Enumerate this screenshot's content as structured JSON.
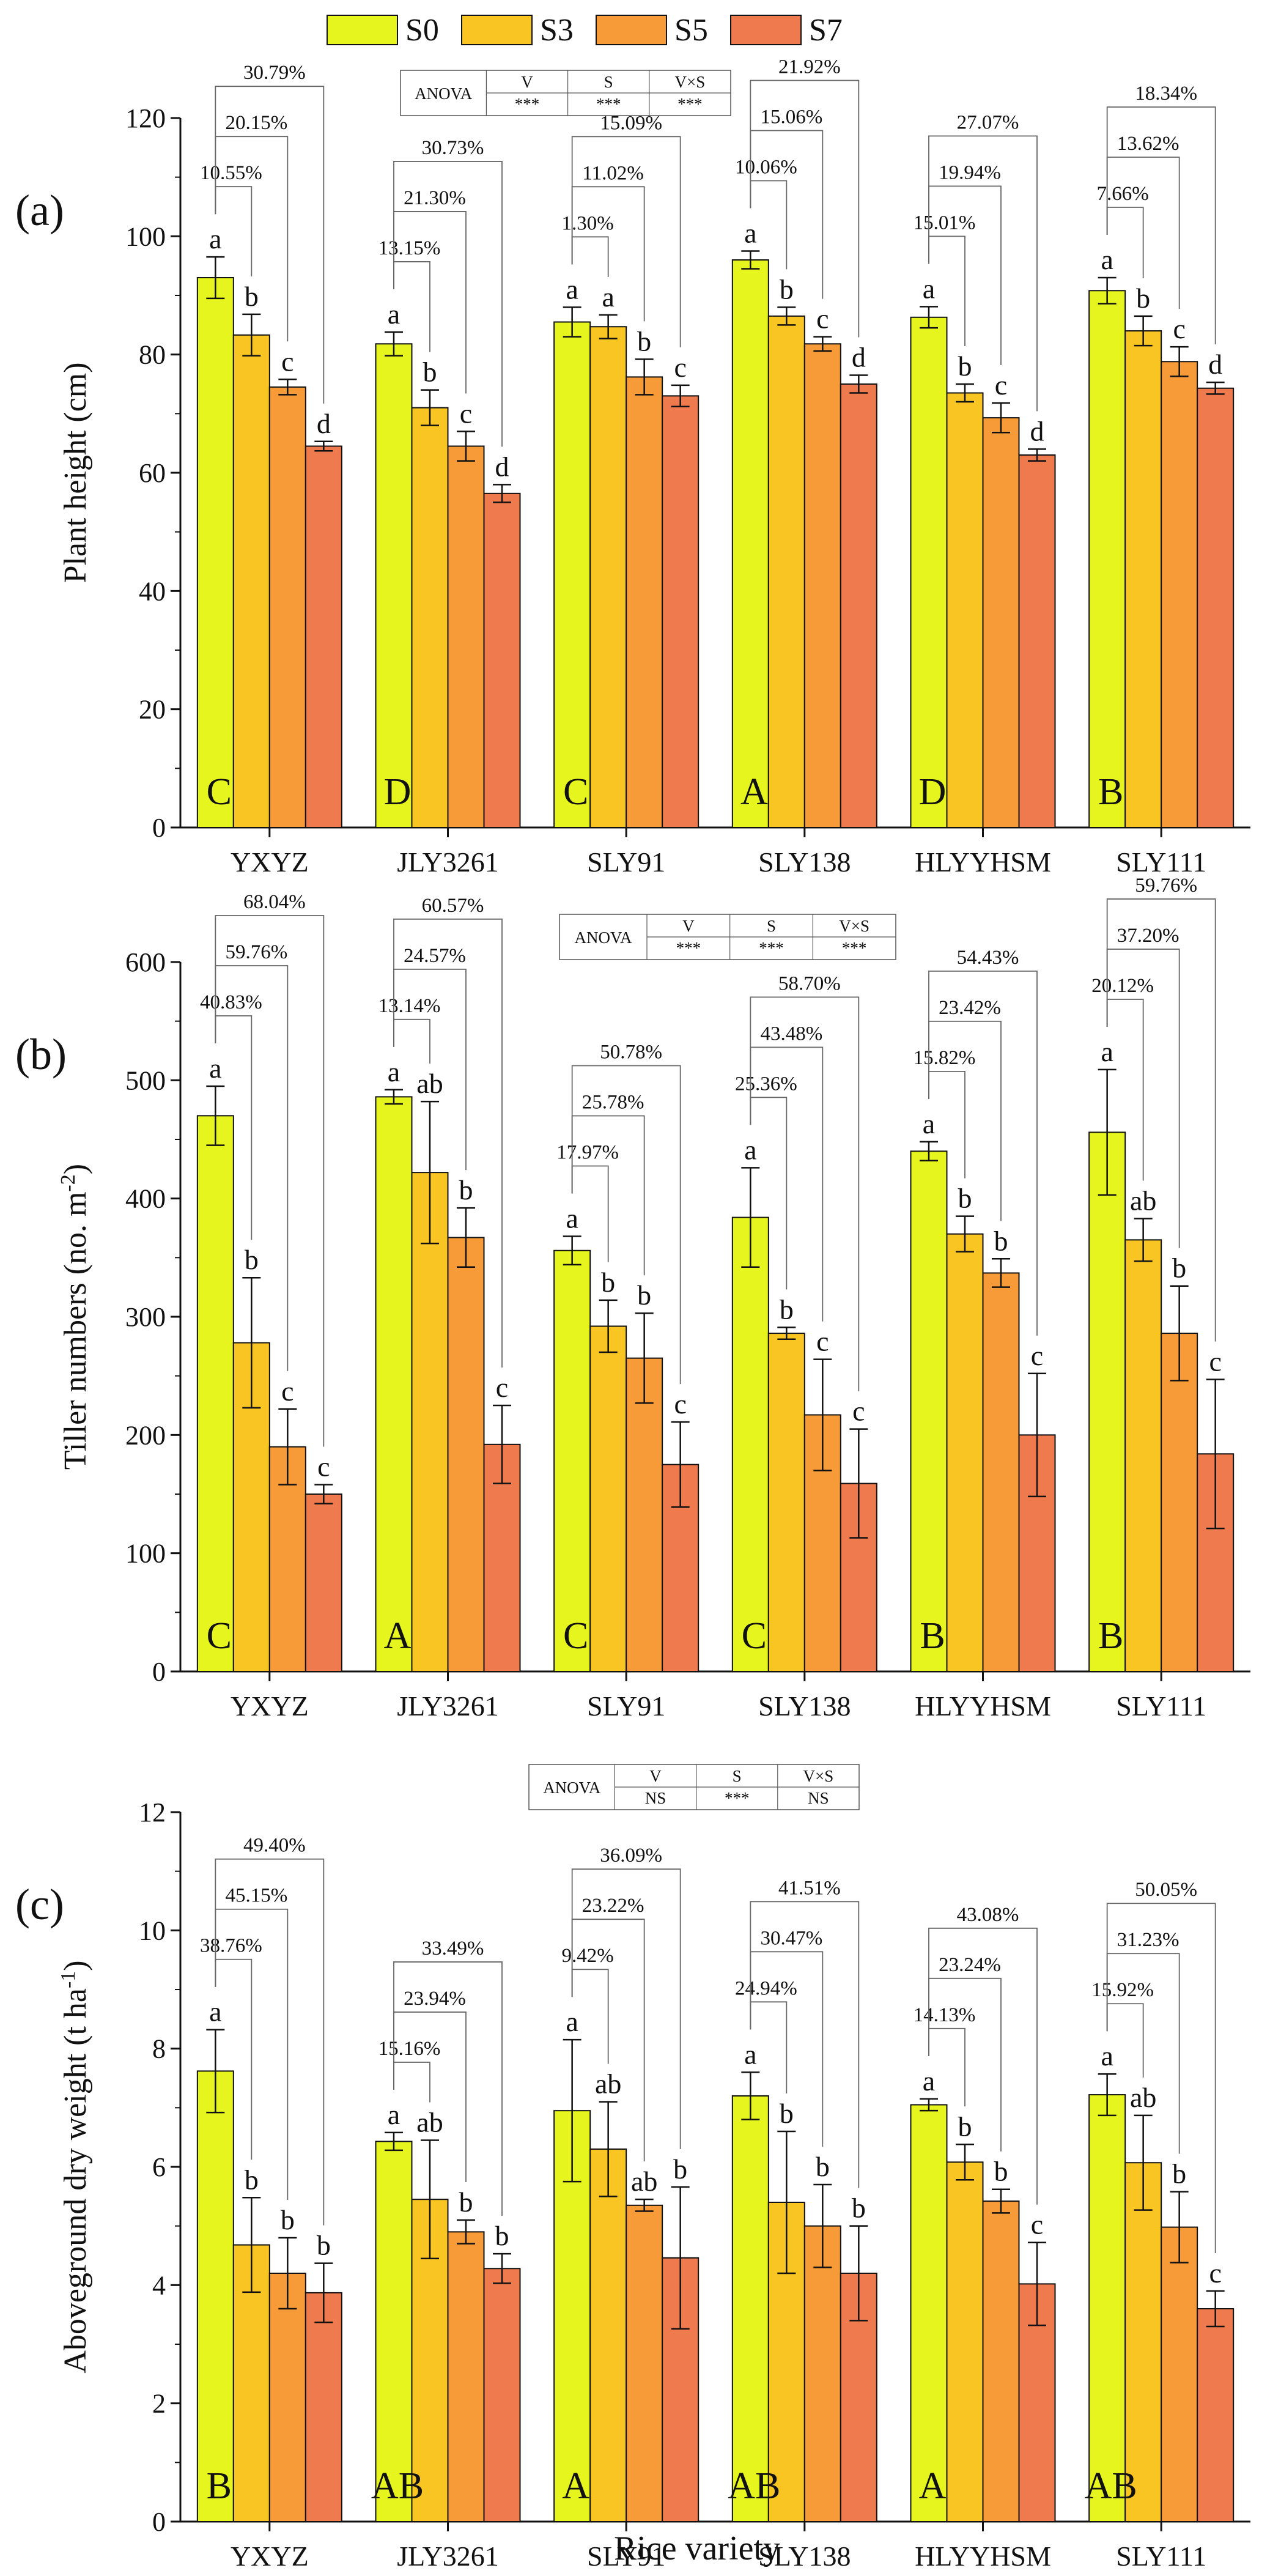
{
  "colors": {
    "S0": "#E6F51E",
    "S3": "#F9C523",
    "S5": "#F79A38",
    "S7": "#EE7A4E",
    "axis": "#111111"
  },
  "legend": [
    "S0",
    "S3",
    "S5",
    "S7"
  ],
  "xlabel": "Rice variety",
  "chart_data": [
    {
      "type": "bar",
      "panel": "(a)",
      "ylabel_main": "Plant height (cm)",
      "ylabel_sup": "",
      "ylabel_tail": "",
      "ylim": [
        0,
        120
      ],
      "ytick_step": 20,
      "yticks": [
        "0",
        "20",
        "40",
        "60",
        "80",
        "100",
        "120"
      ],
      "categories": [
        "YXYZ",
        "JLY3261",
        "SLY91",
        "SLY138",
        "HLYYHSM",
        "SLY111"
      ],
      "series": [
        {
          "name": "S0",
          "values": [
            93,
            81.8,
            85.5,
            96,
            86.3,
            90.8
          ],
          "errors": [
            3.5,
            2,
            2.5,
            1.5,
            1.8,
            2.2
          ]
        },
        {
          "name": "S3",
          "values": [
            83.3,
            71,
            84.7,
            86.5,
            73.5,
            84
          ],
          "errors": [
            3.5,
            3,
            2,
            1.5,
            1.5,
            2.5
          ]
        },
        {
          "name": "S5",
          "values": [
            74.5,
            64.5,
            76.2,
            81.8,
            69.3,
            78.8
          ],
          "errors": [
            1.3,
            2.5,
            3,
            1.2,
            2.5,
            2.5
          ]
        },
        {
          "name": "S7",
          "values": [
            64.5,
            56.5,
            73,
            75,
            63,
            74.3
          ],
          "errors": [
            0.8,
            1.5,
            1.8,
            1.5,
            1,
            1
          ]
        }
      ],
      "letters": [
        [
          "a",
          "b",
          "c",
          "d"
        ],
        [
          "a",
          "b",
          "c",
          "d"
        ],
        [
          "a",
          "a",
          "b",
          "c"
        ],
        [
          "a",
          "b",
          "c",
          "d"
        ],
        [
          "a",
          "b",
          "c",
          "d"
        ],
        [
          "a",
          "b",
          "c",
          "d"
        ]
      ],
      "group_letters": [
        "C",
        "D",
        "C",
        "A",
        "D",
        "B"
      ],
      "pct": [
        [
          "10.55%",
          "20.15%",
          "30.79%"
        ],
        [
          "13.15%",
          "21.30%",
          "30.73%"
        ],
        [
          "1.30%",
          "11.02%",
          "15.09%"
        ],
        [
          "10.06%",
          "15.06%",
          "21.92%"
        ],
        [
          "15.01%",
          "19.94%",
          "27.07%"
        ],
        [
          "7.66%",
          "13.62%",
          "18.34%"
        ]
      ],
      "anova": {
        "label": "ANOVA",
        "headers": [
          "V",
          "S",
          "V×S"
        ],
        "values": [
          "***",
          "***",
          "***"
        ]
      }
    },
    {
      "type": "bar",
      "panel": "(b)",
      "ylabel_main": "Tiller numbers (no. m",
      "ylabel_sup": "-2",
      "ylabel_tail": ")",
      "ylim": [
        0,
        600
      ],
      "ytick_step": 100,
      "yticks": [
        "0",
        "100",
        "200",
        "300",
        "400",
        "500",
        "600"
      ],
      "categories": [
        "YXYZ",
        "JLY3261",
        "SLY91",
        "SLY138",
        "HLYYHSM",
        "SLY111"
      ],
      "series": [
        {
          "name": "S0",
          "values": [
            470,
            486,
            356,
            384,
            440,
            456
          ],
          "errors": [
            25,
            6,
            12,
            42,
            8,
            53
          ]
        },
        {
          "name": "S3",
          "values": [
            278,
            422,
            292,
            286,
            370,
            365
          ],
          "errors": [
            55,
            60,
            22,
            5,
            15,
            18
          ]
        },
        {
          "name": "S5",
          "values": [
            190,
            367,
            265,
            217,
            337,
            286
          ],
          "errors": [
            32,
            25,
            38,
            47,
            12,
            40
          ]
        },
        {
          "name": "S7",
          "values": [
            150,
            192,
            175,
            159,
            200,
            184
          ],
          "errors": [
            8,
            33,
            36,
            46,
            52,
            63
          ]
        }
      ],
      "letters": [
        [
          "a",
          "b",
          "c",
          "c"
        ],
        [
          "a",
          "ab",
          "b",
          "c"
        ],
        [
          "a",
          "b",
          "b",
          "c"
        ],
        [
          "a",
          "b",
          "c",
          "c"
        ],
        [
          "a",
          "b",
          "b",
          "c"
        ],
        [
          "a",
          "ab",
          "b",
          "c"
        ]
      ],
      "group_letters": [
        "C",
        "A",
        "C",
        "C",
        "B",
        "B"
      ],
      "pct": [
        [
          "40.83%",
          "59.76%",
          "68.04%"
        ],
        [
          "13.14%",
          "24.57%",
          "60.57%"
        ],
        [
          "17.97%",
          "25.78%",
          "50.78%"
        ],
        [
          "25.36%",
          "43.48%",
          "58.70%"
        ],
        [
          "15.82%",
          "23.42%",
          "54.43%"
        ],
        [
          "20.12%",
          "37.20%",
          "59.76%"
        ]
      ],
      "anova": {
        "label": "ANOVA",
        "headers": [
          "V",
          "S",
          "V×S"
        ],
        "values": [
          "***",
          "***",
          "***"
        ]
      }
    },
    {
      "type": "bar",
      "panel": "(c)",
      "ylabel_main": "Aboveground dry weight (t ha",
      "ylabel_sup": "-1",
      "ylabel_tail": ")",
      "ylim": [
        0,
        12
      ],
      "ytick_step": 2,
      "yticks": [
        "0",
        "2",
        "4",
        "6",
        "8",
        "10",
        "12"
      ],
      "categories": [
        "YXYZ",
        "JLY3261",
        "SLY91",
        "SLY138",
        "HLYYHSM",
        "SLY111"
      ],
      "series": [
        {
          "name": "S0",
          "values": [
            7.62,
            6.43,
            6.95,
            7.2,
            7.05,
            7.22
          ],
          "errors": [
            0.7,
            0.15,
            1.2,
            0.4,
            0.1,
            0.35
          ]
        },
        {
          "name": "S3",
          "values": [
            4.68,
            5.45,
            6.3,
            5.4,
            6.08,
            6.07
          ],
          "errors": [
            0.8,
            1.0,
            0.8,
            1.2,
            0.3,
            0.8
          ]
        },
        {
          "name": "S5",
          "values": [
            4.2,
            4.9,
            5.35,
            5.0,
            5.42,
            4.98
          ],
          "errors": [
            0.6,
            0.2,
            0.1,
            0.7,
            0.2,
            0.6
          ]
        },
        {
          "name": "S7",
          "values": [
            3.87,
            4.28,
            4.46,
            4.2,
            4.02,
            3.6
          ],
          "errors": [
            0.5,
            0.25,
            1.2,
            0.8,
            0.7,
            0.3
          ]
        }
      ],
      "letters": [
        [
          "a",
          "b",
          "b",
          "b"
        ],
        [
          "a",
          "ab",
          "b",
          "b"
        ],
        [
          "a",
          "ab",
          "ab",
          "b"
        ],
        [
          "a",
          "b",
          "b",
          "b"
        ],
        [
          "a",
          "b",
          "b",
          "c"
        ],
        [
          "a",
          "ab",
          "b",
          "c"
        ]
      ],
      "group_letters": [
        "B",
        "AB",
        "A",
        "AB",
        "A",
        "AB"
      ],
      "pct": [
        [
          "38.76%",
          "45.15%",
          "49.40%"
        ],
        [
          "15.16%",
          "23.94%",
          "33.49%"
        ],
        [
          "9.42%",
          "23.22%",
          "36.09%"
        ],
        [
          "24.94%",
          "30.47%",
          "41.51%"
        ],
        [
          "14.13%",
          "23.24%",
          "43.08%"
        ],
        [
          "15.92%",
          "31.23%",
          "50.05%"
        ]
      ],
      "anova": {
        "label": "ANOVA",
        "headers": [
          "V",
          "S",
          "V×S"
        ],
        "values": [
          "NS",
          "***",
          "NS"
        ]
      }
    }
  ]
}
